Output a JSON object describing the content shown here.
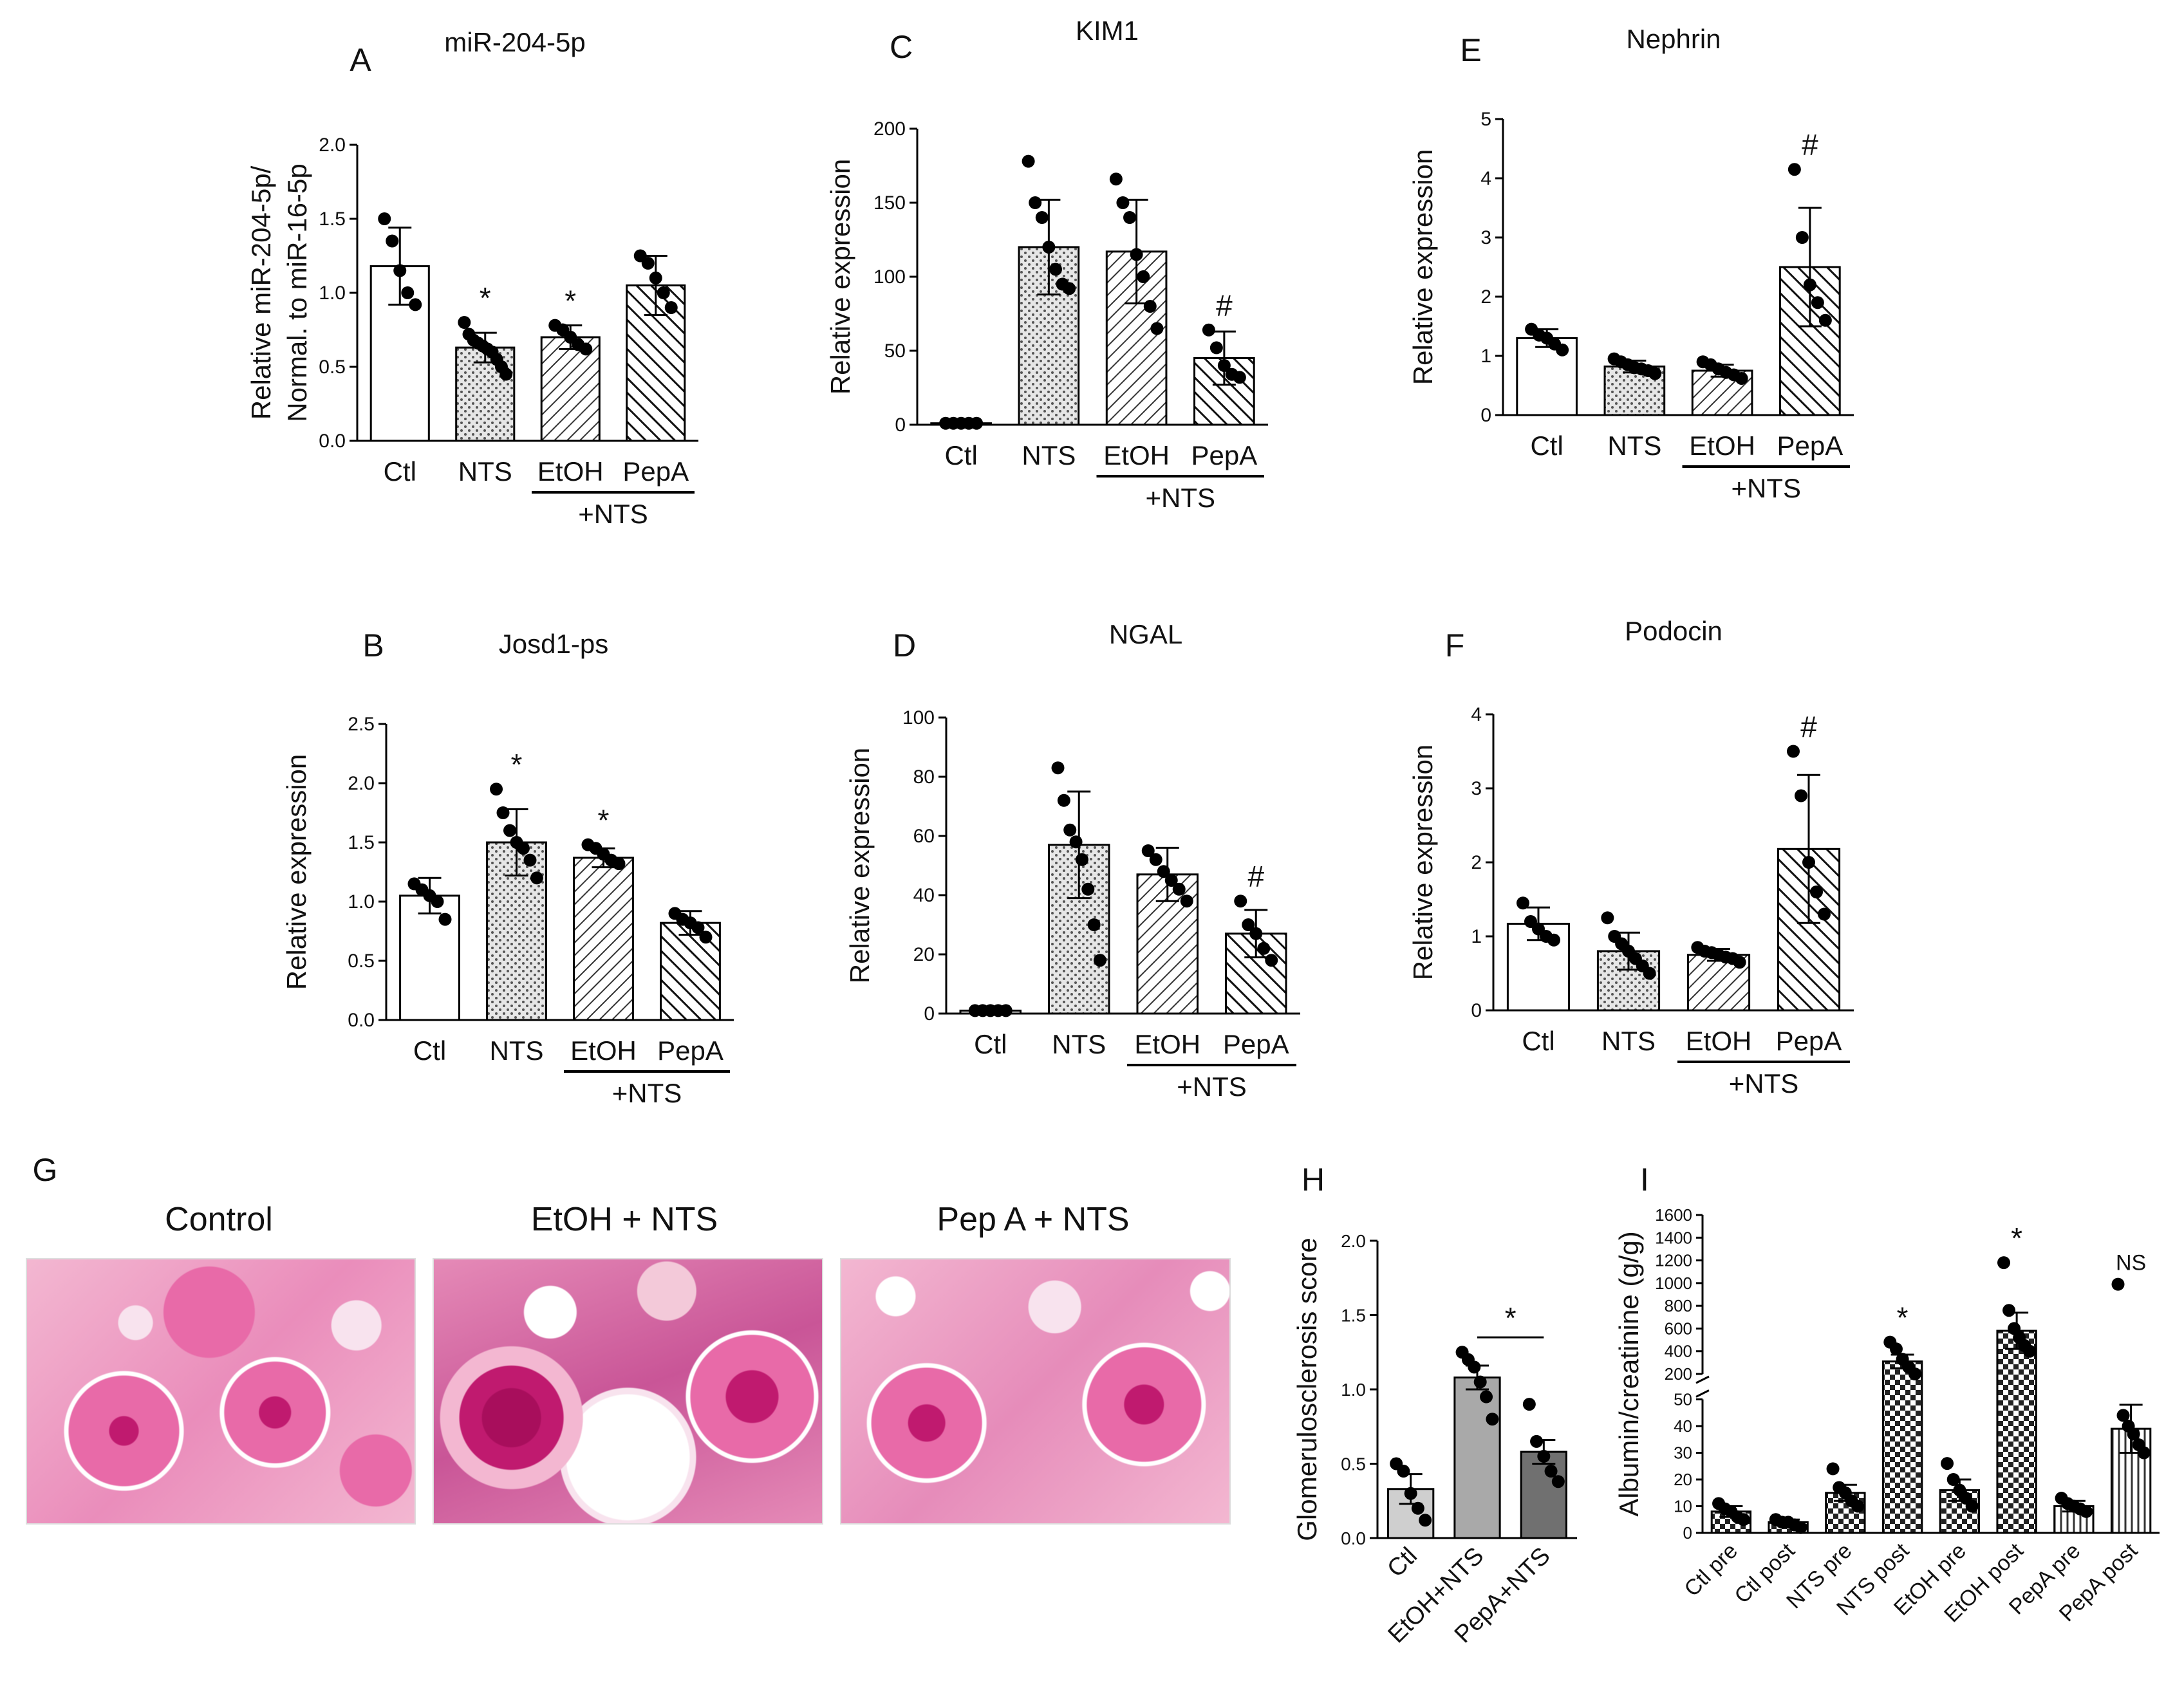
{
  "panels": {
    "A": "A",
    "B": "B",
    "C": "C",
    "D": "D",
    "E": "E",
    "F": "F",
    "G": "G",
    "H": "H",
    "I": "I"
  },
  "group_label": "+NTS",
  "histology": {
    "titles": [
      "Control",
      "EtOH + NTS",
      "Pep A + NTS"
    ],
    "stain_colors": [
      "#f3b7d1",
      "#e86aa8",
      "#c01a6f",
      "#f8e3ee"
    ]
  },
  "colors": {
    "bar_edge": "#000000",
    "bar_fill": "#ffffff",
    "dot": "#000000",
    "grey_bar": "#a9a9a9",
    "dark_grey_bar": "#707070",
    "light_grey_bar": "#cfcfcf"
  },
  "chart_data": [
    {
      "id": "A",
      "type": "bar",
      "title": "miR-204-5p",
      "ylabel": [
        "Relative miR-204-5p/",
        "Normal. to miR-16-5p"
      ],
      "categories": [
        "Ctl",
        "NTS",
        "EtOH",
        "PepA"
      ],
      "values": [
        1.18,
        0.63,
        0.7,
        1.05
      ],
      "errors": [
        0.26,
        0.1,
        0.08,
        0.2
      ],
      "points": [
        [
          1.5,
          1.35,
          1.15,
          1.0,
          0.92
        ],
        [
          0.8,
          0.72,
          0.68,
          0.66,
          0.64,
          0.62,
          0.6,
          0.55,
          0.5,
          0.45
        ],
        [
          0.78,
          0.75,
          0.7,
          0.65,
          0.62
        ],
        [
          1.25,
          1.2,
          1.1,
          1.0,
          0.9
        ]
      ],
      "fills": [
        "plain",
        "dots",
        "diag",
        "diag2"
      ],
      "marks": [
        "",
        "*",
        "*",
        ""
      ],
      "ylim": [
        0,
        2.0
      ],
      "yticks": [
        "0.0",
        "0.5",
        "1.0",
        "1.5",
        "2.0"
      ]
    },
    {
      "id": "B",
      "type": "bar",
      "title": "Josd1-ps",
      "ylabel": [
        "Relative expression"
      ],
      "categories": [
        "Ctl",
        "NTS",
        "EtOH",
        "PepA"
      ],
      "values": [
        1.05,
        1.5,
        1.37,
        0.82
      ],
      "errors": [
        0.15,
        0.28,
        0.08,
        0.1
      ],
      "points": [
        [
          1.15,
          1.1,
          1.05,
          1.0,
          0.85
        ],
        [
          1.95,
          1.75,
          1.6,
          1.5,
          1.45,
          1.35,
          1.2
        ],
        [
          1.48,
          1.45,
          1.4,
          1.35,
          1.32
        ],
        [
          0.9,
          0.85,
          0.82,
          0.78,
          0.7
        ]
      ],
      "fills": [
        "plain",
        "dots",
        "diag",
        "diag2"
      ],
      "marks": [
        "",
        "*",
        "*",
        ""
      ],
      "ylim": [
        0,
        2.5
      ],
      "yticks": [
        "0.0",
        "0.5",
        "1.0",
        "1.5",
        "2.0",
        "2.5"
      ]
    },
    {
      "id": "C",
      "type": "bar",
      "title": "KIM1",
      "ylabel": [
        "Relative expression"
      ],
      "categories": [
        "Ctl",
        "NTS",
        "EtOH",
        "PepA"
      ],
      "values": [
        1,
        120,
        117,
        45
      ],
      "errors": [
        0,
        32,
        35,
        18
      ],
      "points": [
        [
          1,
          1,
          1,
          1,
          1
        ],
        [
          178,
          150,
          140,
          120,
          105,
          95,
          92
        ],
        [
          166,
          150,
          140,
          115,
          100,
          80,
          65
        ],
        [
          64,
          52,
          40,
          34,
          32
        ]
      ],
      "fills": [
        "plain",
        "dots",
        "diag",
        "diag2"
      ],
      "marks": [
        "",
        "",
        "",
        "#"
      ],
      "ylim": [
        0,
        200
      ],
      "yticks": [
        "0",
        "50",
        "100",
        "150",
        "200"
      ]
    },
    {
      "id": "D",
      "type": "bar",
      "title": "NGAL",
      "ylabel": [
        "Relative expression"
      ],
      "categories": [
        "Ctl",
        "NTS",
        "EtOH",
        "PepA"
      ],
      "values": [
        1,
        57,
        47,
        27
      ],
      "errors": [
        0,
        18,
        9,
        8
      ],
      "points": [
        [
          1,
          1,
          1,
          1,
          1
        ],
        [
          83,
          72,
          62,
          58,
          52,
          42,
          30,
          18
        ],
        [
          55,
          52,
          48,
          45,
          42,
          38
        ],
        [
          38,
          30,
          27,
          22,
          18
        ]
      ],
      "fills": [
        "plain",
        "dots",
        "diag",
        "diag2"
      ],
      "marks": [
        "",
        "",
        "",
        "#"
      ],
      "ylim": [
        0,
        100
      ],
      "yticks": [
        "0",
        "20",
        "40",
        "60",
        "80",
        "100"
      ]
    },
    {
      "id": "E",
      "type": "bar",
      "title": "Nephrin",
      "ylabel": [
        "Relative expression"
      ],
      "categories": [
        "Ctl",
        "NTS",
        "EtOH",
        "PepA"
      ],
      "values": [
        1.3,
        0.82,
        0.75,
        2.5
      ],
      "errors": [
        0.15,
        0.1,
        0.1,
        1.0
      ],
      "points": [
        [
          1.45,
          1.35,
          1.3,
          1.2,
          1.1
        ],
        [
          0.95,
          0.9,
          0.85,
          0.8,
          0.78,
          0.75,
          0.7
        ],
        [
          0.9,
          0.85,
          0.78,
          0.72,
          0.68,
          0.62
        ],
        [
          4.15,
          3.0,
          2.2,
          1.9,
          1.6
        ]
      ],
      "fills": [
        "plain",
        "dots",
        "diag",
        "diag2"
      ],
      "marks": [
        "",
        "",
        "",
        "#"
      ],
      "ylim": [
        0,
        5
      ],
      "yticks": [
        "0",
        "1",
        "2",
        "3",
        "4",
        "5"
      ]
    },
    {
      "id": "F",
      "type": "bar",
      "title": "Podocin",
      "ylabel": [
        "Relative expression"
      ],
      "categories": [
        "Ctl",
        "NTS",
        "EtOH",
        "PepA"
      ],
      "values": [
        1.17,
        0.8,
        0.75,
        2.18
      ],
      "errors": [
        0.22,
        0.25,
        0.08,
        1.0
      ],
      "points": [
        [
          1.45,
          1.2,
          1.1,
          1.0,
          0.95
        ],
        [
          1.25,
          1.0,
          0.9,
          0.8,
          0.7,
          0.6,
          0.5
        ],
        [
          0.85,
          0.8,
          0.78,
          0.75,
          0.72,
          0.7,
          0.65
        ],
        [
          3.5,
          2.9,
          2.0,
          1.6,
          1.3
        ]
      ],
      "fills": [
        "plain",
        "dots",
        "diag",
        "diag2"
      ],
      "marks": [
        "",
        "",
        "",
        "#"
      ],
      "ylim": [
        0,
        4
      ],
      "yticks": [
        "0",
        "1",
        "2",
        "3",
        "4"
      ]
    },
    {
      "id": "H",
      "type": "bar",
      "title": "",
      "ylabel": [
        "Glomerulosclerosis score"
      ],
      "categories": [
        "Ctl",
        "EtOH+NTS",
        "PepA+NTS"
      ],
      "values": [
        0.33,
        1.08,
        0.58
      ],
      "errors": [
        0.1,
        0.08,
        0.08
      ],
      "points": [
        [
          0.5,
          0.45,
          0.3,
          0.2,
          0.12
        ],
        [
          1.25,
          1.2,
          1.15,
          1.05,
          0.95,
          0.8
        ],
        [
          0.9,
          0.65,
          0.55,
          0.45,
          0.38
        ]
      ],
      "fills": [
        "light",
        "grey",
        "dark"
      ],
      "marks": [],
      "significance": {
        "from": 1,
        "to": 2,
        "label": "*"
      },
      "ylim": [
        0,
        2.0
      ],
      "yticks": [
        "0.0",
        "0.5",
        "1.0",
        "1.5",
        "2.0"
      ]
    },
    {
      "id": "I",
      "type": "bar",
      "title": "",
      "ylabel": [
        "Albumin/creatinine (g/g)"
      ],
      "categories": [
        "Ctl pre",
        "Ctl post",
        "NTS pre",
        "NTS post",
        "EtOH pre",
        "EtOH post",
        "PepA pre",
        "PepA post"
      ],
      "values": [
        8,
        4,
        15,
        310,
        16,
        580,
        10,
        39
      ],
      "errors": [
        2,
        1,
        3,
        60,
        4,
        160,
        2,
        9
      ],
      "points": [
        [
          11,
          9,
          8,
          6,
          5
        ],
        [
          5,
          4,
          4,
          3,
          2
        ],
        [
          24,
          17,
          15,
          12,
          10
        ],
        [
          480,
          420,
          330,
          260,
          200
        ],
        [
          26,
          20,
          16,
          13,
          10
        ],
        [
          1180,
          760,
          600,
          520,
          450,
          400
        ],
        [
          13,
          11,
          10,
          9,
          8
        ],
        [
          990,
          44,
          40,
          37,
          33,
          30
        ]
      ],
      "fills": [
        "check",
        "check",
        "check",
        "check",
        "check",
        "check",
        "vline",
        "vline"
      ],
      "marks": [
        "",
        "",
        "",
        "*",
        "",
        "*",
        "",
        "NS"
      ],
      "axis_break": {
        "lower": [
          0,
          50
        ],
        "upper": [
          200,
          1600
        ]
      },
      "lower_ticks": [
        "0",
        "10",
        "20",
        "30",
        "40",
        "50"
      ],
      "upper_ticks": [
        "200",
        "400",
        "600",
        "800",
        "1000",
        "1200",
        "1400",
        "1600"
      ]
    }
  ]
}
